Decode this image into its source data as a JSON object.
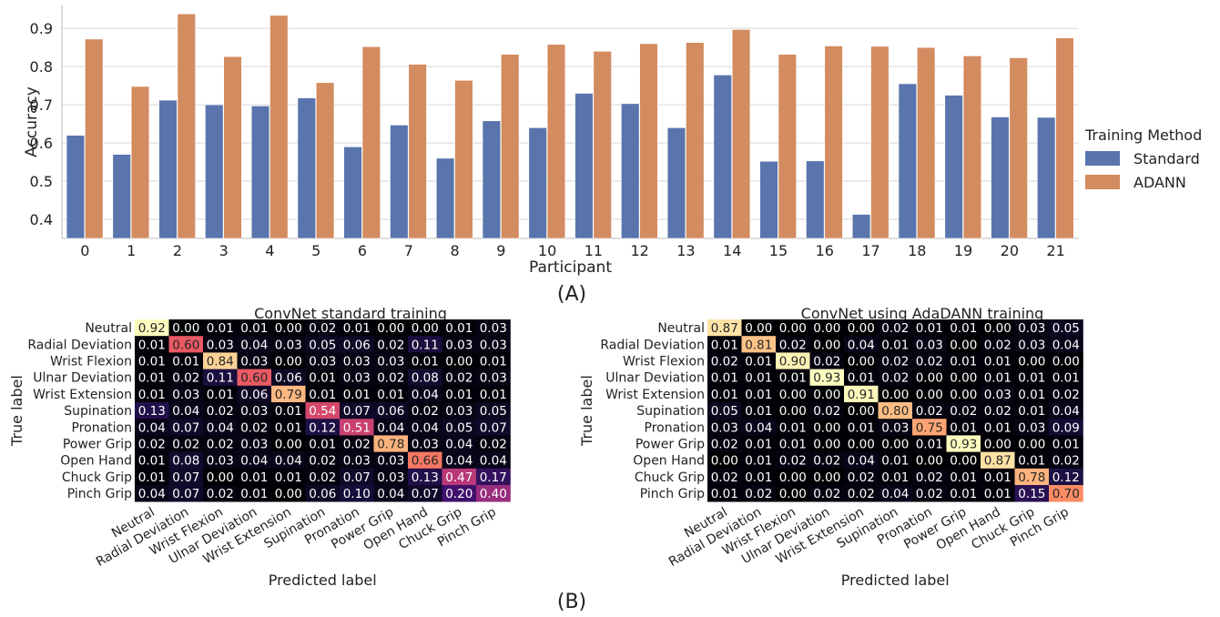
{
  "panel_labels": {
    "a": "(A)",
    "b": "(B)"
  },
  "chart_data": [
    {
      "type": "bar",
      "xlabel": "Participant",
      "ylabel": "Accuracy",
      "ylim": [
        0.35,
        0.96
      ],
      "yticks": [
        "0.4",
        "0.5",
        "0.6",
        "0.7",
        "0.8",
        "0.9"
      ],
      "grid": true,
      "legend": {
        "title": "Training Method",
        "placement": "right"
      },
      "categories": [
        "0",
        "1",
        "2",
        "3",
        "4",
        "5",
        "6",
        "7",
        "8",
        "9",
        "10",
        "11",
        "12",
        "13",
        "14",
        "15",
        "16",
        "17",
        "18",
        "19",
        "20",
        "21"
      ],
      "series": [
        {
          "name": "Standard",
          "color": "#5a75ad",
          "values": [
            0.62,
            0.57,
            0.712,
            0.7,
            0.697,
            0.718,
            0.59,
            0.647,
            0.56,
            0.658,
            0.64,
            0.73,
            0.703,
            0.64,
            0.778,
            0.552,
            0.553,
            0.413,
            0.755,
            0.725,
            0.668,
            0.667
          ]
        },
        {
          "name": "ADANN",
          "color": "#d38b60",
          "values": [
            0.872,
            0.748,
            0.938,
            0.826,
            0.934,
            0.758,
            0.852,
            0.806,
            0.764,
            0.832,
            0.858,
            0.84,
            0.86,
            0.863,
            0.897,
            0.832,
            0.854,
            0.853,
            0.85,
            0.828,
            0.823,
            0.875
          ]
        }
      ]
    },
    {
      "type": "heatmap",
      "title": "ConvNet standard training",
      "xlabel": "Predicted label",
      "ylabel": "True label",
      "labels": [
        "Neutral",
        "Radial Deviation",
        "Wrist Flexion",
        "Ulnar Deviation",
        "Wrist Extension",
        "Supination",
        "Pronation",
        "Power Grip",
        "Open Hand",
        "Chuck Grip",
        "Pinch Grip"
      ],
      "values": [
        [
          "0.92",
          "0.00",
          "0.01",
          "0.01",
          "0.00",
          "0.02",
          "0.01",
          "0.00",
          "0.00",
          "0.01",
          "0.03"
        ],
        [
          "0.01",
          "0.60",
          "0.03",
          "0.04",
          "0.03",
          "0.05",
          "0.06",
          "0.02",
          "0.11",
          "0.03",
          "0.03"
        ],
        [
          "0.01",
          "0.01",
          "0.84",
          "0.03",
          "0.00",
          "0.03",
          "0.03",
          "0.03",
          "0.01",
          "0.00",
          "0.01"
        ],
        [
          "0.01",
          "0.02",
          "0.11",
          "0.60",
          "0.06",
          "0.01",
          "0.03",
          "0.02",
          "0.08",
          "0.02",
          "0.03"
        ],
        [
          "0.01",
          "0.03",
          "0.01",
          "0.06",
          "0.79",
          "0.01",
          "0.01",
          "0.01",
          "0.04",
          "0.01",
          "0.01"
        ],
        [
          "0.13",
          "0.04",
          "0.02",
          "0.03",
          "0.01",
          "0.54",
          "0.07",
          "0.06",
          "0.02",
          "0.03",
          "0.05"
        ],
        [
          "0.04",
          "0.07",
          "0.04",
          "0.02",
          "0.01",
          "0.12",
          "0.51",
          "0.04",
          "0.04",
          "0.05",
          "0.07"
        ],
        [
          "0.02",
          "0.02",
          "0.02",
          "0.03",
          "0.00",
          "0.01",
          "0.02",
          "0.78",
          "0.03",
          "0.04",
          "0.02"
        ],
        [
          "0.01",
          "0.08",
          "0.03",
          "0.04",
          "0.04",
          "0.02",
          "0.03",
          "0.03",
          "0.66",
          "0.04",
          "0.04"
        ],
        [
          "0.01",
          "0.07",
          "0.00",
          "0.01",
          "0.01",
          "0.02",
          "0.07",
          "0.03",
          "0.13",
          "0.47",
          "0.17"
        ],
        [
          "0.04",
          "0.07",
          "0.02",
          "0.01",
          "0.00",
          "0.06",
          "0.10",
          "0.04",
          "0.07",
          "0.20",
          "0.40"
        ]
      ]
    },
    {
      "type": "heatmap",
      "title": "ConvNet using AdaDANN training",
      "xlabel": "Predicted label",
      "ylabel": "True label",
      "labels": [
        "Neutral",
        "Radial Deviation",
        "Wrist Flexion",
        "Ulnar Deviation",
        "Wrist Extension",
        "Supination",
        "Pronation",
        "Power Grip",
        "Open Hand",
        "Chuck Grip",
        "Pinch Grip"
      ],
      "values": [
        [
          "0.87",
          "0.00",
          "0.00",
          "0.00",
          "0.00",
          "0.02",
          "0.01",
          "0.01",
          "0.00",
          "0.03",
          "0.05"
        ],
        [
          "0.01",
          "0.81",
          "0.02",
          "0.00",
          "0.04",
          "0.01",
          "0.03",
          "0.00",
          "0.02",
          "0.03",
          "0.04"
        ],
        [
          "0.02",
          "0.01",
          "0.90",
          "0.02",
          "0.00",
          "0.02",
          "0.02",
          "0.01",
          "0.01",
          "0.00",
          "0.00"
        ],
        [
          "0.01",
          "0.01",
          "0.01",
          "0.93",
          "0.01",
          "0.02",
          "0.00",
          "0.00",
          "0.01",
          "0.01",
          "0.01"
        ],
        [
          "0.01",
          "0.01",
          "0.00",
          "0.00",
          "0.91",
          "0.00",
          "0.00",
          "0.00",
          "0.03",
          "0.01",
          "0.02"
        ],
        [
          "0.05",
          "0.01",
          "0.00",
          "0.02",
          "0.00",
          "0.80",
          "0.02",
          "0.02",
          "0.02",
          "0.01",
          "0.04"
        ],
        [
          "0.03",
          "0.04",
          "0.01",
          "0.00",
          "0.01",
          "0.03",
          "0.75",
          "0.01",
          "0.01",
          "0.03",
          "0.09"
        ],
        [
          "0.02",
          "0.01",
          "0.01",
          "0.00",
          "0.00",
          "0.00",
          "0.01",
          "0.93",
          "0.00",
          "0.00",
          "0.01"
        ],
        [
          "0.00",
          "0.01",
          "0.02",
          "0.02",
          "0.04",
          "0.01",
          "0.00",
          "0.00",
          "0.87",
          "0.01",
          "0.02"
        ],
        [
          "0.02",
          "0.01",
          "0.00",
          "0.00",
          "0.02",
          "0.01",
          "0.02",
          "0.01",
          "0.01",
          "0.78",
          "0.12"
        ],
        [
          "0.01",
          "0.02",
          "0.00",
          "0.02",
          "0.02",
          "0.04",
          "0.02",
          "0.01",
          "0.01",
          "0.15",
          "0.70"
        ]
      ]
    }
  ]
}
